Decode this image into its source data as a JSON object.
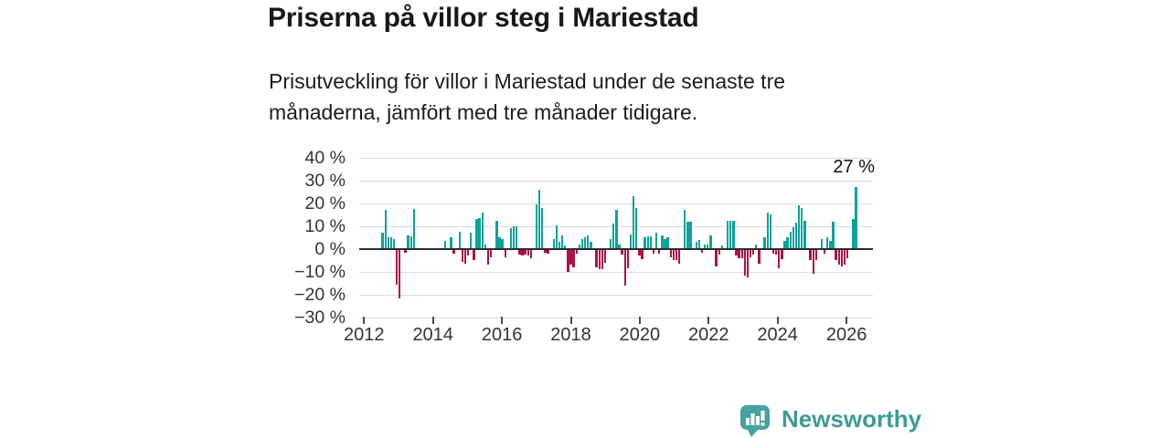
{
  "header": {
    "title": "Priserna på villor steg i Mariestad",
    "subtitle": "Prisutveckling för villor i Mariestad under de senaste tre månaderna, jämfört med tre månader tidigare."
  },
  "chart_data": {
    "type": "bar",
    "title": "Priserna på villor steg i Mariestad",
    "xlabel": "",
    "ylabel": "",
    "unit": "%",
    "ylim": [
      -30,
      40
    ],
    "grid": true,
    "grid_values": [
      40,
      30,
      20,
      10,
      0,
      -10,
      -20,
      -30
    ],
    "y_tick_labels": [
      "40 %",
      "30 %",
      "20 %",
      "10 %",
      "0 %",
      "−10 %",
      "−20 %",
      "−30 %"
    ],
    "x_tick_years": [
      2012,
      2014,
      2016,
      2018,
      2020,
      2022,
      2024,
      2026
    ],
    "x_tick_labels": [
      "2012",
      "2014",
      "2016",
      "2018",
      "2020",
      "2022",
      "2024",
      "2026"
    ],
    "x_start_month": "2012-01",
    "annotation": {
      "text": "27 %",
      "value": 27
    },
    "colors": {
      "positive": "#0BA29A",
      "negative": "#B01245",
      "gridline": "#DBDBDB",
      "zero_line": "#2B2B2B",
      "axis_text": "#333333"
    },
    "bars": [
      [
        6,
        7
      ],
      [
        7,
        17
      ],
      [
        8,
        5
      ],
      [
        9,
        5
      ],
      [
        10,
        4.5
      ],
      [
        11,
        -15
      ],
      [
        12,
        -21
      ],
      [
        14,
        -1
      ],
      [
        15,
        6
      ],
      [
        16,
        5.5
      ],
      [
        17,
        17.5
      ],
      [
        28,
        3.5
      ],
      [
        30,
        5
      ],
      [
        31,
        -1.5
      ],
      [
        33,
        7.5
      ],
      [
        34,
        -5
      ],
      [
        35,
        -6
      ],
      [
        36,
        -2.5
      ],
      [
        37,
        7
      ],
      [
        38,
        -4.5
      ],
      [
        39,
        13
      ],
      [
        40,
        13.5
      ],
      [
        41,
        16
      ],
      [
        42,
        2
      ],
      [
        43,
        -6.5
      ],
      [
        44,
        -3
      ],
      [
        46,
        12.5
      ],
      [
        47,
        5
      ],
      [
        48,
        4.5
      ],
      [
        49,
        -3
      ],
      [
        51,
        9
      ],
      [
        52,
        10
      ],
      [
        53,
        10
      ],
      [
        54,
        -2
      ],
      [
        55,
        -2.5
      ],
      [
        56,
        -2
      ],
      [
        57,
        -2.5
      ],
      [
        58,
        -3.5
      ],
      [
        60,
        19.5
      ],
      [
        61,
        26
      ],
      [
        62,
        18
      ],
      [
        63,
        -1
      ],
      [
        64,
        -1.5
      ],
      [
        66,
        4.5
      ],
      [
        67,
        10.5
      ],
      [
        68,
        3
      ],
      [
        69,
        6
      ],
      [
        70,
        1.5
      ],
      [
        71,
        -9.5
      ],
      [
        72,
        -6.5
      ],
      [
        73,
        -7.5
      ],
      [
        74,
        -1.5
      ],
      [
        75,
        2
      ],
      [
        76,
        4.5
      ],
      [
        77,
        5
      ],
      [
        78,
        6
      ],
      [
        79,
        3
      ],
      [
        81,
        -7.5
      ],
      [
        82,
        -8.5
      ],
      [
        83,
        -8.5
      ],
      [
        84,
        -5.5
      ],
      [
        86,
        4.5
      ],
      [
        87,
        11
      ],
      [
        88,
        17
      ],
      [
        89,
        2
      ],
      [
        90,
        -2
      ],
      [
        91,
        -15.5
      ],
      [
        92,
        -8
      ],
      [
        93,
        6.5
      ],
      [
        94,
        23
      ],
      [
        95,
        18
      ],
      [
        96,
        -2.5
      ],
      [
        97,
        -4
      ],
      [
        98,
        5
      ],
      [
        99,
        5.5
      ],
      [
        100,
        5.5
      ],
      [
        101,
        -1.5
      ],
      [
        102,
        7
      ],
      [
        103,
        -1.5
      ],
      [
        104,
        6
      ],
      [
        105,
        4.5
      ],
      [
        106,
        5
      ],
      [
        107,
        -3
      ],
      [
        108,
        -4.5
      ],
      [
        109,
        -4.5
      ],
      [
        110,
        -6
      ],
      [
        112,
        17
      ],
      [
        113,
        12
      ],
      [
        114,
        12
      ],
      [
        116,
        3
      ],
      [
        117,
        4
      ],
      [
        118,
        -1
      ],
      [
        119,
        2
      ],
      [
        120,
        2
      ],
      [
        121,
        6
      ],
      [
        123,
        -7
      ],
      [
        124,
        -2
      ],
      [
        125,
        1.5
      ],
      [
        127,
        12.5
      ],
      [
        128,
        12.5
      ],
      [
        129,
        12.5
      ],
      [
        130,
        -2.5
      ],
      [
        131,
        -3.5
      ],
      [
        132,
        -3.5
      ],
      [
        133,
        -11
      ],
      [
        134,
        -12
      ],
      [
        135,
        -3
      ],
      [
        136,
        -2
      ],
      [
        137,
        2
      ],
      [
        138,
        -6
      ],
      [
        140,
        5
      ],
      [
        141,
        16
      ],
      [
        142,
        15
      ],
      [
        143,
        -1.5
      ],
      [
        144,
        -2
      ],
      [
        145,
        -8
      ],
      [
        146,
        -4
      ],
      [
        147,
        3.5
      ],
      [
        148,
        5
      ],
      [
        149,
        7.5
      ],
      [
        150,
        9.5
      ],
      [
        151,
        11.5
      ],
      [
        152,
        19
      ],
      [
        153,
        18
      ],
      [
        154,
        12.5
      ],
      [
        156,
        -4.5
      ],
      [
        157,
        -10.5
      ],
      [
        158,
        -4.5
      ],
      [
        160,
        4.5
      ],
      [
        161,
        -1.5
      ],
      [
        162,
        5
      ],
      [
        163,
        3.5
      ],
      [
        164,
        12
      ],
      [
        165,
        -4.5
      ],
      [
        166,
        -6.5
      ],
      [
        167,
        -7
      ],
      [
        168,
        -6.5
      ],
      [
        169,
        -3.5
      ],
      [
        171,
        13
      ],
      [
        172,
        27
      ]
    ]
  },
  "footer": {
    "brand": "Newsworthy"
  }
}
